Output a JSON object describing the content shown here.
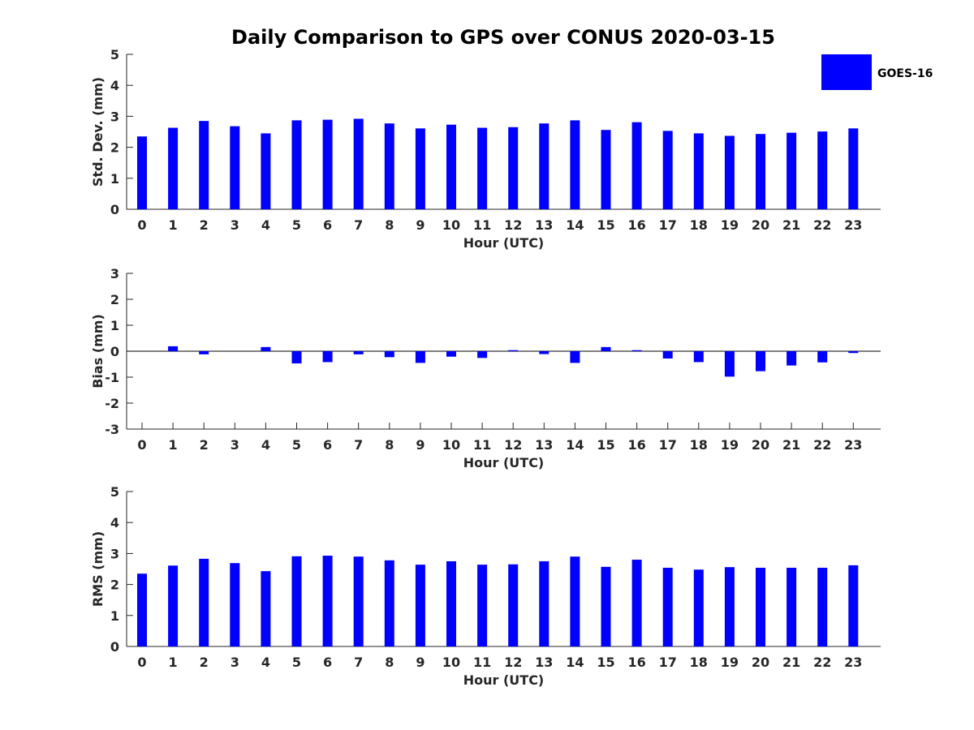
{
  "chart_data": {
    "type": "bar",
    "title": "Daily Comparison to GPS over CONUS 2020-03-15",
    "legend": {
      "label": "GOES-16",
      "color": "#0000ff",
      "position": "top-right"
    },
    "categories": [
      "0",
      "1",
      "2",
      "3",
      "4",
      "5",
      "6",
      "7",
      "8",
      "9",
      "10",
      "11",
      "12",
      "13",
      "14",
      "15",
      "16",
      "17",
      "18",
      "19",
      "20",
      "21",
      "22",
      "23"
    ],
    "xlabel": "Hour (UTC)",
    "panels": [
      {
        "id": "std",
        "ylabel": "Std. Dev. (mm)",
        "ylim": [
          0,
          5
        ],
        "yticks": [
          "0",
          "1",
          "2",
          "3",
          "4",
          "5"
        ],
        "series": [
          {
            "name": "GOES-16",
            "values": [
              2.35,
              2.63,
              2.85,
              2.68,
              2.45,
              2.87,
              2.89,
              2.92,
              2.77,
              2.61,
              2.73,
              2.63,
              2.65,
              2.77,
              2.87,
              2.56,
              2.81,
              2.53,
              2.45,
              2.37,
              2.43,
              2.47,
              2.51,
              2.61
            ]
          }
        ]
      },
      {
        "id": "bias",
        "ylabel": "Bias (mm)",
        "ylim": [
          -3,
          3
        ],
        "yticks": [
          "-3",
          "-2",
          "-1",
          "0",
          "1",
          "2",
          "3"
        ],
        "zero_line": true,
        "series": [
          {
            "name": "GOES-16",
            "values": [
              0.0,
              0.19,
              -0.12,
              0.0,
              0.16,
              -0.47,
              -0.42,
              -0.12,
              -0.23,
              -0.45,
              -0.21,
              -0.26,
              0.04,
              -0.11,
              -0.45,
              0.16,
              0.04,
              -0.28,
              -0.42,
              -0.98,
              -0.77,
              -0.55,
              -0.43,
              -0.07
            ]
          }
        ]
      },
      {
        "id": "rms",
        "ylabel": "RMS (mm)",
        "ylim": [
          0,
          5
        ],
        "yticks": [
          "0",
          "1",
          "2",
          "3",
          "4",
          "5"
        ],
        "series": [
          {
            "name": "GOES-16",
            "values": [
              2.35,
              2.61,
              2.83,
              2.69,
              2.43,
              2.91,
              2.93,
              2.9,
              2.78,
              2.64,
              2.75,
              2.64,
              2.65,
              2.75,
              2.9,
              2.57,
              2.8,
              2.54,
              2.48,
              2.56,
              2.54,
              2.54,
              2.54,
              2.62
            ]
          }
        ]
      }
    ]
  }
}
